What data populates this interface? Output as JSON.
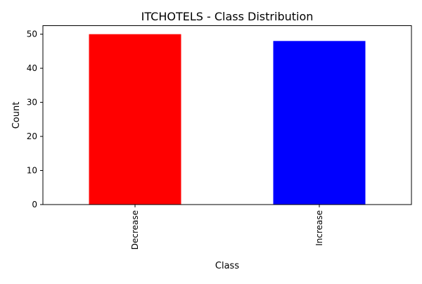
{
  "chart_data": {
    "type": "bar",
    "title": "ITCHOTELS - Class Distribution",
    "xlabel": "Class",
    "ylabel": "Count",
    "categories": [
      "Decrease",
      "Increase"
    ],
    "values": [
      50,
      48
    ],
    "colors": [
      "#ff0000",
      "#0000ff"
    ],
    "ylim": [
      0,
      52.5
    ],
    "yticks": [
      0,
      10,
      20,
      30,
      40,
      50
    ],
    "grid": false,
    "legend": "none"
  }
}
